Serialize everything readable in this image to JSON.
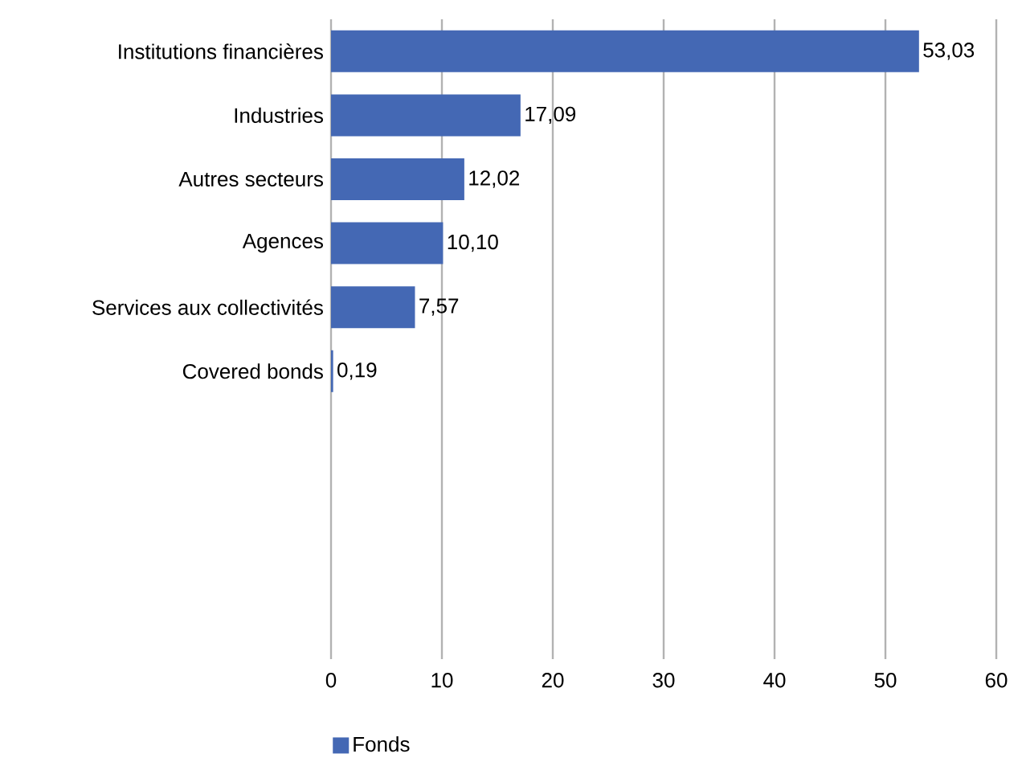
{
  "chart_data": {
    "type": "bar",
    "orientation": "horizontal",
    "categories": [
      "Institutions financières",
      "Industries",
      "Autres secteurs",
      "Agences",
      "Services aux collectivités",
      "Covered bonds",
      null,
      null,
      null,
      null
    ],
    "series": [
      {
        "name": "Fonds",
        "color": "#4468b4",
        "values": [
          53.03,
          17.09,
          12.02,
          10.1,
          7.57,
          0.19,
          null,
          null,
          null,
          null
        ],
        "value_labels": [
          "53,03",
          "17,09",
          "12,02",
          "10,10",
          "7,57",
          "0,19",
          null,
          null,
          null,
          null
        ]
      }
    ],
    "xlim": [
      0,
      60
    ],
    "xticks": [
      0,
      10,
      20,
      30,
      40,
      50,
      60
    ],
    "grid": "x",
    "legend": "bottom left"
  }
}
